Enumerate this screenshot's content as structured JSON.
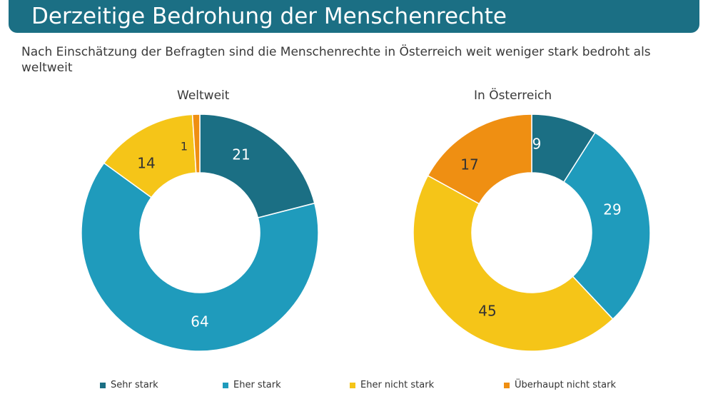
{
  "header": {
    "title": "Derzeitige Bedrohung der Menschenrechte"
  },
  "subtitle": "Nach Einschätzung der Befragten sind die Menschenrechte in Österreich weit weniger stark bedroht als weltweit",
  "colors": {
    "sehr_stark": "#1b6f84",
    "eher_stark": "#1f9bbc",
    "eher_nicht_stark": "#f5c518",
    "ueberhaupt_nicht_stark": "#ef8f12",
    "header_bg": "#1b6f84"
  },
  "chart_data": [
    {
      "type": "pie",
      "variant": "donut",
      "title": "Weltweit",
      "categories": [
        "Sehr stark",
        "Eher stark",
        "Eher nicht stark",
        "Überhaupt nicht stark"
      ],
      "values": [
        21,
        64,
        14,
        1
      ],
      "labels": [
        "21",
        "64",
        "14",
        "1"
      ]
    },
    {
      "type": "pie",
      "variant": "donut",
      "title": "In Österreich",
      "categories": [
        "Sehr stark",
        "Eher stark",
        "Eher nicht stark",
        "Überhaupt nicht stark"
      ],
      "values": [
        9,
        29,
        45,
        17
      ],
      "labels": [
        "9",
        "29",
        "45",
        "17"
      ]
    }
  ],
  "legend": [
    {
      "label": "Sehr stark",
      "color": "#1b6f84"
    },
    {
      "label": "Eher stark",
      "color": "#1f9bbc"
    },
    {
      "label": "Eher nicht stark",
      "color": "#f5c518"
    },
    {
      "label": "Überhaupt nicht stark",
      "color": "#ef8f12"
    }
  ]
}
